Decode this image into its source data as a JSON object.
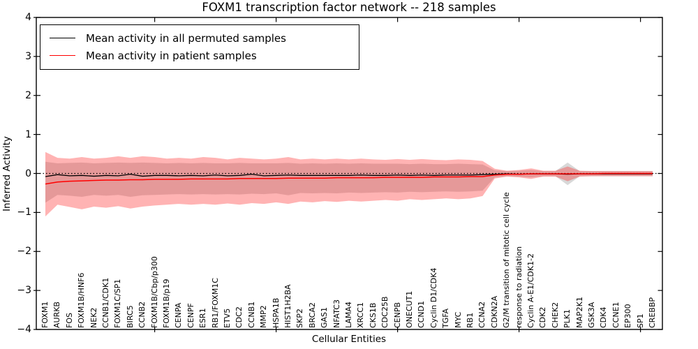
{
  "chart_data": {
    "type": "line",
    "title": "FOXM1 transcription factor network -- 218 samples",
    "xlabel": "Cellular Entities",
    "ylabel": "Inferred Activity",
    "n_samples": 218,
    "ylim": [
      -4,
      4
    ],
    "yticks": [
      4,
      3,
      2,
      1,
      0,
      -1,
      -2,
      -3,
      -4
    ],
    "ytick_labels": [
      "4",
      "3",
      "2",
      "1",
      "0",
      "−1",
      "−2",
      "−3",
      "−4"
    ],
    "grid": false,
    "zero_reference_line": "dotted",
    "legend_position": "upper left",
    "categories": [
      "FOXM1",
      "AURKB",
      "FOS",
      "FOXM1B/HNF6",
      "NEK2",
      "CCNB1/CDK1",
      "FOXM1C/SP1",
      "BIRC5",
      "CCNB2",
      "FOXM1B/Cbp/p300",
      "FOXM1B/p19",
      "CENPA",
      "CENPF",
      "ESR1",
      "RB1/FOXM1C",
      "ETV5",
      "CDC2",
      "CCNB1",
      "MMP2",
      "HSPA1B",
      "HIST1H2BA",
      "SKP2",
      "BRCA2",
      "GAS1",
      "NFATC3",
      "LAMA4",
      "XRCC1",
      "CKS1B",
      "CDC25B",
      "CENPB",
      "ONECUT1",
      "CCND1",
      "Cyclin D1/CDK4",
      "TGFA",
      "MYC",
      "RB1",
      "CCNA2",
      "CDKN2A",
      "G2/M transition of mitotic cell cycle",
      "response to radiation",
      "Cyclin A-E1/CDK1-2",
      "CDK2",
      "CHEK2",
      "PLK1",
      "MAP2K1",
      "GSK3A",
      "CDK4",
      "CCNE1",
      "EP300",
      "SP1",
      "CREBBP"
    ],
    "series": [
      {
        "name": "Mean activity in all permuted samples",
        "color": "#000000",
        "width": 1.3,
        "values": [
          -0.08,
          -0.03,
          -0.06,
          -0.05,
          -0.07,
          -0.05,
          -0.06,
          -0.02,
          -0.07,
          -0.05,
          -0.05,
          -0.06,
          -0.05,
          -0.06,
          -0.04,
          -0.06,
          -0.05,
          -0.02,
          -0.06,
          -0.05,
          -0.04,
          -0.05,
          -0.05,
          -0.05,
          -0.05,
          -0.05,
          -0.04,
          -0.05,
          -0.05,
          -0.04,
          -0.05,
          -0.04,
          -0.05,
          -0.04,
          -0.04,
          -0.04,
          -0.03,
          -0.02,
          -0.01,
          -0.02,
          -0.01,
          -0.01,
          -0.01,
          -0.02,
          -0.01,
          -0.01,
          -0.01,
          -0.01,
          -0.01,
          -0.01,
          -0.01
        ]
      },
      {
        "name": "Mean activity in patient samples",
        "color": "#ff0000",
        "width": 1.5,
        "values": [
          -0.27,
          -0.22,
          -0.2,
          -0.19,
          -0.18,
          -0.17,
          -0.17,
          -0.16,
          -0.16,
          -0.15,
          -0.15,
          -0.15,
          -0.14,
          -0.14,
          -0.14,
          -0.14,
          -0.13,
          -0.13,
          -0.13,
          -0.13,
          -0.12,
          -0.12,
          -0.12,
          -0.12,
          -0.11,
          -0.11,
          -0.11,
          -0.11,
          -0.1,
          -0.1,
          -0.1,
          -0.1,
          -0.09,
          -0.09,
          -0.09,
          -0.08,
          -0.08,
          -0.04,
          -0.02,
          -0.02,
          -0.01,
          -0.01,
          -0.01,
          -0.01,
          -0.01,
          -0.01,
          0.0,
          0.0,
          0.0,
          0.0,
          0.0
        ]
      }
    ],
    "bands": [
      {
        "name": "permuted-samples-range",
        "color": "#909090",
        "opacity": 0.35,
        "upper": [
          0.3,
          0.26,
          0.27,
          0.28,
          0.26,
          0.27,
          0.28,
          0.27,
          0.28,
          0.27,
          0.26,
          0.27,
          0.26,
          0.27,
          0.26,
          0.26,
          0.27,
          0.26,
          0.26,
          0.26,
          0.27,
          0.25,
          0.26,
          0.25,
          0.26,
          0.25,
          0.26,
          0.25,
          0.25,
          0.25,
          0.24,
          0.25,
          0.24,
          0.24,
          0.25,
          0.24,
          0.23,
          0.08,
          0.06,
          0.07,
          0.09,
          0.06,
          0.06,
          0.28,
          0.06,
          0.06,
          0.06,
          0.06,
          0.06,
          0.06,
          0.06
        ],
        "lower": [
          -0.75,
          -0.55,
          -0.57,
          -0.6,
          -0.55,
          -0.57,
          -0.55,
          -0.6,
          -0.56,
          -0.55,
          -0.54,
          -0.53,
          -0.54,
          -0.53,
          -0.54,
          -0.53,
          -0.54,
          -0.52,
          -0.53,
          -0.51,
          -0.56,
          -0.5,
          -0.51,
          -0.5,
          -0.51,
          -0.49,
          -0.5,
          -0.49,
          -0.48,
          -0.49,
          -0.47,
          -0.48,
          -0.47,
          -0.46,
          -0.47,
          -0.46,
          -0.44,
          -0.1,
          -0.07,
          -0.08,
          -0.1,
          -0.07,
          -0.07,
          -0.3,
          -0.07,
          -0.07,
          -0.07,
          -0.07,
          -0.07,
          -0.07,
          -0.07
        ]
      },
      {
        "name": "patient-samples-range",
        "color": "#ff2020",
        "opacity": 0.34,
        "upper": [
          0.55,
          0.4,
          0.38,
          0.42,
          0.38,
          0.4,
          0.44,
          0.4,
          0.44,
          0.42,
          0.38,
          0.4,
          0.38,
          0.42,
          0.4,
          0.36,
          0.4,
          0.38,
          0.36,
          0.38,
          0.42,
          0.36,
          0.38,
          0.36,
          0.38,
          0.36,
          0.38,
          0.36,
          0.35,
          0.37,
          0.35,
          0.37,
          0.35,
          0.34,
          0.36,
          0.35,
          0.32,
          0.12,
          0.07,
          0.09,
          0.13,
          0.07,
          0.07,
          0.18,
          0.07,
          0.06,
          0.06,
          0.06,
          0.06,
          0.06,
          0.06
        ],
        "lower": [
          -1.1,
          -0.8,
          -0.86,
          -0.92,
          -0.85,
          -0.88,
          -0.84,
          -0.9,
          -0.85,
          -0.82,
          -0.8,
          -0.78,
          -0.8,
          -0.78,
          -0.8,
          -0.77,
          -0.8,
          -0.76,
          -0.78,
          -0.74,
          -0.78,
          -0.72,
          -0.74,
          -0.71,
          -0.73,
          -0.7,
          -0.72,
          -0.7,
          -0.68,
          -0.7,
          -0.66,
          -0.68,
          -0.66,
          -0.64,
          -0.66,
          -0.64,
          -0.58,
          -0.13,
          -0.08,
          -0.1,
          -0.14,
          -0.08,
          -0.08,
          -0.2,
          -0.08,
          -0.07,
          -0.07,
          -0.07,
          -0.07,
          -0.07,
          -0.07
        ]
      }
    ],
    "x_major_tick_indices": [
      9,
      19,
      29,
      39,
      49
    ]
  }
}
